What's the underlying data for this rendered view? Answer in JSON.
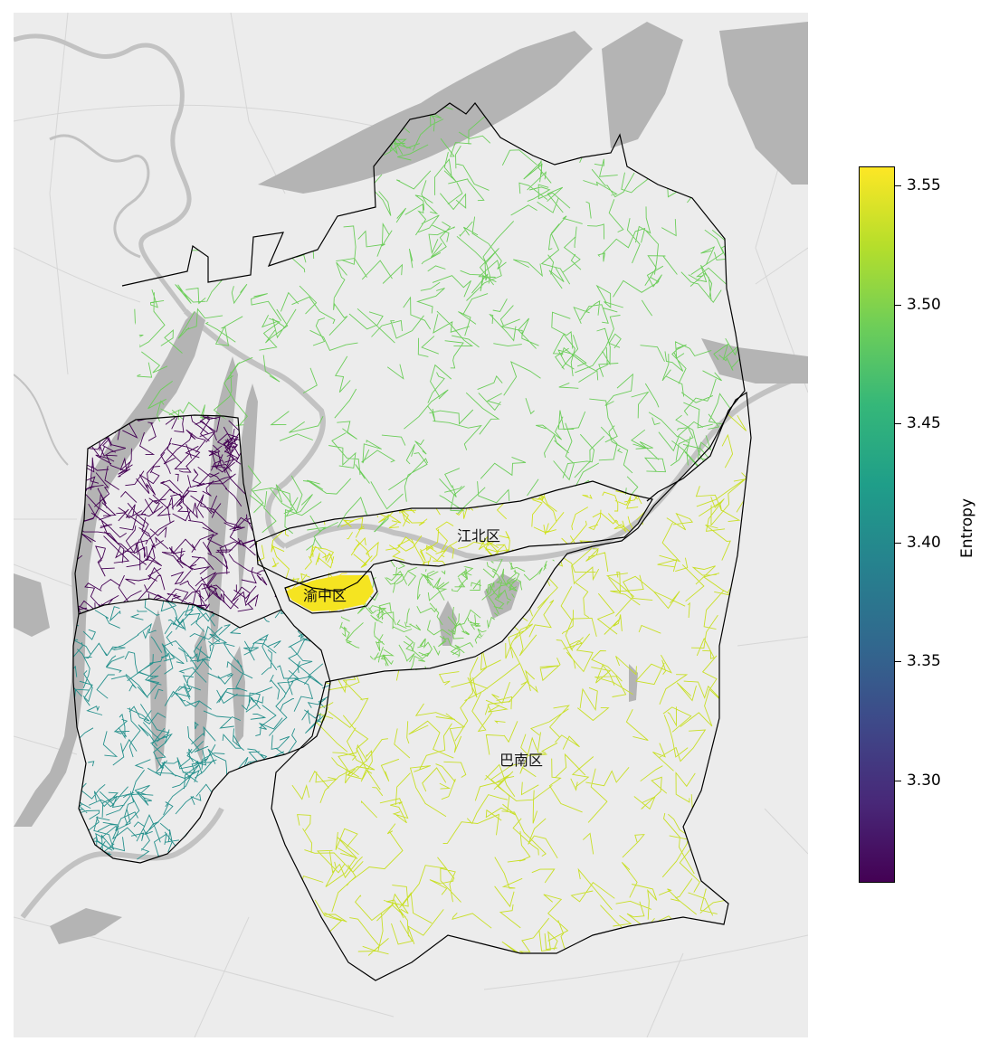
{
  "colors": {
    "basemap": "#ececec",
    "terrain": "#b4b4b4",
    "boundary": "#000000",
    "viridis": [
      "#440154",
      "#482878",
      "#3e4989",
      "#31688e",
      "#26828e",
      "#1f9e89",
      "#35b779",
      "#6ece58",
      "#b5de2b",
      "#fde725"
    ]
  },
  "districts": [
    {
      "key": "north",
      "label": "",
      "entropy": 3.5,
      "color": "#6ccd5a"
    },
    {
      "key": "west",
      "label": "",
      "entropy": 3.26,
      "color": "#440154"
    },
    {
      "key": "southwest",
      "label": "",
      "entropy": 3.4,
      "color": "#25908c"
    },
    {
      "key": "jiangbei",
      "label": "江北区",
      "entropy": 3.53,
      "color": "#cfe11c"
    },
    {
      "key": "yuzhong",
      "label": "渝中区",
      "entropy": 3.555,
      "color": "#f5e421"
    },
    {
      "key": "nanan",
      "label": "",
      "entropy": 3.49,
      "color": "#73cf55"
    },
    {
      "key": "banan",
      "label": "巴南区",
      "entropy": 3.53,
      "color": "#c8df26"
    }
  ],
  "colorbar": {
    "title": "Entropy",
    "min": 3.257,
    "max": 3.558,
    "ticks": [
      "3.30",
      "3.35",
      "3.40",
      "3.45",
      "3.50",
      "3.55"
    ]
  }
}
